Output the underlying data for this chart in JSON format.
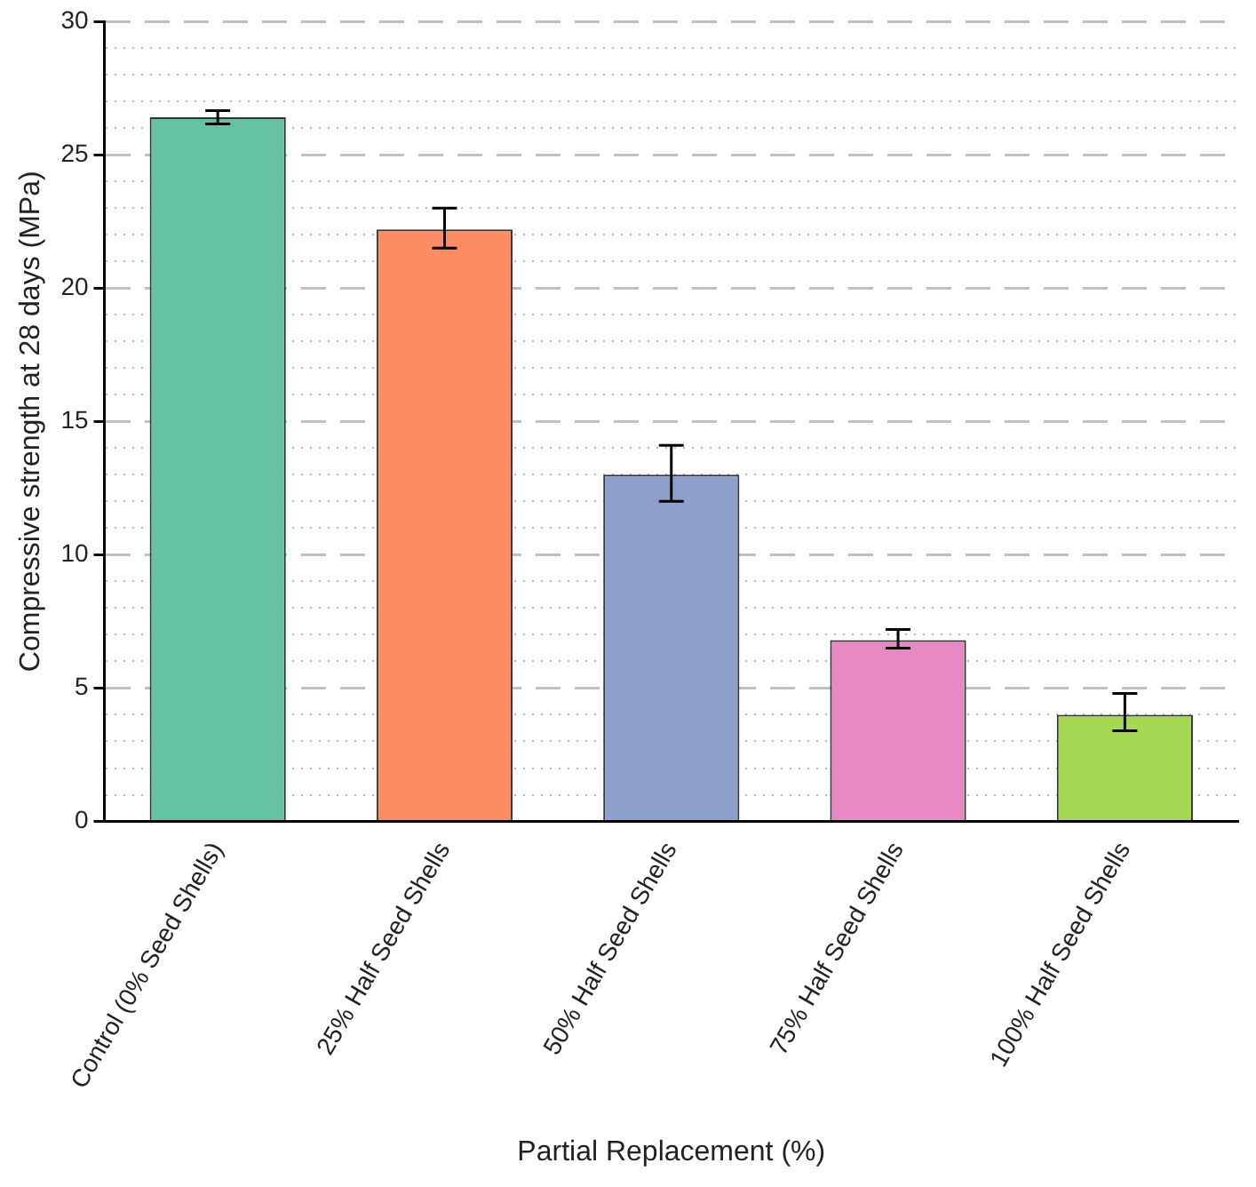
{
  "chart_data": {
    "type": "bar",
    "xlabel": "Partial Replacement (%)",
    "ylabel": "Compressive strength at 28 days (MPa)",
    "categories": [
      "Control (0% Seed Shells)",
      "25% Half Seed Shells",
      "50% Half Seed Shells",
      "75% Half Seed Shells",
      "100% Half Seed Shells"
    ],
    "values": [
      26.4,
      22.2,
      13.0,
      6.8,
      4.0
    ],
    "colors": [
      "#66c2a5",
      "#fc8d62",
      "#8da0cb",
      "#e78ac3",
      "#a6d854"
    ],
    "errors": [
      0.25,
      [
        21.5,
        23.0
      ],
      [
        12.0,
        14.1
      ],
      [
        6.5,
        7.2
      ],
      [
        3.4,
        4.8
      ]
    ],
    "ylim": [
      0,
      30
    ],
    "yticks": [
      0,
      {
        "value": 1,
        "label": null
      },
      {
        "value": 2,
        "label": null
      },
      {
        "value": 3,
        "label": null
      },
      {
        "value": 4,
        "label": null
      },
      5,
      {
        "value": 6,
        "label": null
      },
      {
        "value": 7,
        "label": null
      },
      {
        "value": 8,
        "label": null
      },
      {
        "value": 9,
        "label": null
      },
      10,
      {
        "value": 11,
        "label": null
      },
      {
        "value": 12,
        "label": null
      },
      {
        "value": 13,
        "label": null
      },
      {
        "value": 14,
        "label": null
      },
      15,
      {
        "value": 16,
        "label": null
      },
      {
        "value": 17,
        "label": null
      },
      {
        "value": 18,
        "label": null
      },
      {
        "value": 19,
        "label": null
      },
      20,
      {
        "value": 21,
        "label": null
      },
      {
        "value": 22,
        "label": null
      },
      {
        "value": 23,
        "label": null
      },
      {
        "value": 24,
        "label": null
      },
      25,
      {
        "value": 26,
        "label": null
      },
      {
        "value": 27,
        "label": null
      },
      {
        "value": 28,
        "label": null
      },
      {
        "value": 29,
        "label": null
      },
      30
    ],
    "grid": "y",
    "legend": false
  }
}
